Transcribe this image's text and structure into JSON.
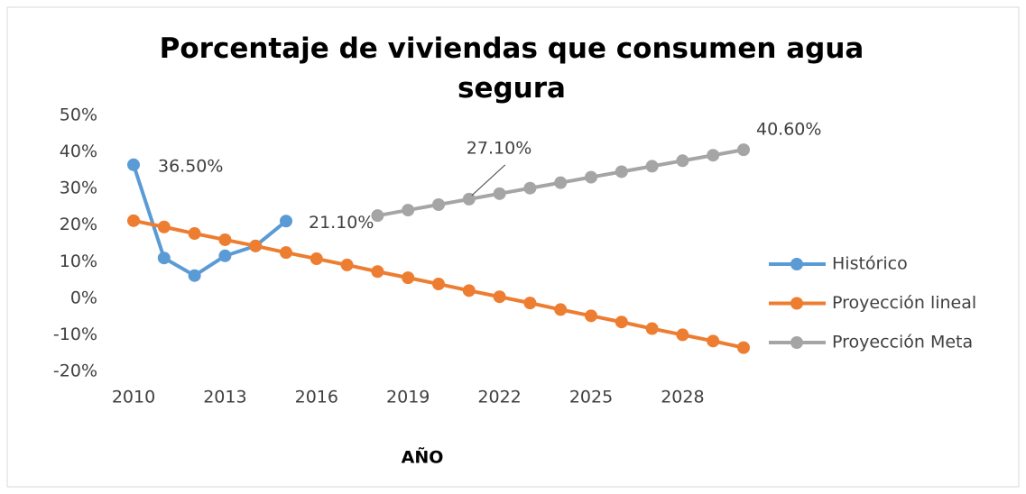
{
  "chart_data": {
    "type": "line",
    "title": "Porcentaje de viviendas que consumen agua segura",
    "xlabel": "AÑO",
    "x": [
      2010,
      2011,
      2012,
      2013,
      2014,
      2015,
      2016,
      2017,
      2018,
      2019,
      2020,
      2021,
      2022,
      2023,
      2024,
      2025,
      2026,
      2027,
      2028,
      2029,
      2030
    ],
    "xlim": [
      2010,
      2030
    ],
    "xticks": [
      2010,
      2013,
      2016,
      2019,
      2022,
      2025,
      2028
    ],
    "ylim": [
      -20,
      50
    ],
    "yticks": [
      {
        "value": -20,
        "label": "-20%"
      },
      {
        "value": -10,
        "label": "-10%"
      },
      {
        "value": 0,
        "label": "0%"
      },
      {
        "value": 10,
        "label": "10%"
      },
      {
        "value": 20,
        "label": "20%"
      },
      {
        "value": 30,
        "label": "30%"
      },
      {
        "value": 40,
        "label": "40%"
      },
      {
        "value": 50,
        "label": "50%"
      }
    ],
    "grid": false,
    "legend": "right",
    "series": [
      {
        "name": "Histórico",
        "color": "#5b9bd5",
        "values": [
          36.5,
          11,
          6.2,
          11.6,
          14.3,
          21.1,
          null,
          null,
          null,
          null,
          null,
          null,
          null,
          null,
          null,
          null,
          null,
          null,
          null,
          null,
          null
        ],
        "value_labels": [
          "36.50%",
          null,
          null,
          null,
          null,
          "21.10%",
          null,
          null,
          null,
          null,
          null,
          null,
          null,
          null,
          null,
          null,
          null,
          null,
          null,
          null,
          null
        ]
      },
      {
        "name": "Proyección lineal",
        "color": "#ed7d31",
        "values": [
          21.2,
          19.5,
          17.7,
          16.0,
          14.3,
          12.5,
          10.8,
          9.1,
          7.3,
          5.6,
          3.9,
          2.1,
          0.4,
          -1.3,
          -3.1,
          -4.8,
          -6.5,
          -8.3,
          -10.0,
          -11.7,
          -13.5
        ]
      },
      {
        "name": "Proyección Meta",
        "color": "#a5a5a5",
        "values": [
          null,
          null,
          null,
          null,
          null,
          null,
          null,
          null,
          22.6,
          24.1,
          25.6,
          27.1,
          28.6,
          30.1,
          31.6,
          33.1,
          34.6,
          36.1,
          37.6,
          39.1,
          40.6
        ],
        "value_labels": [
          null,
          null,
          null,
          null,
          null,
          null,
          null,
          null,
          null,
          null,
          null,
          "27.10%",
          null,
          null,
          null,
          null,
          null,
          null,
          null,
          null,
          "40.60%"
        ]
      }
    ]
  }
}
